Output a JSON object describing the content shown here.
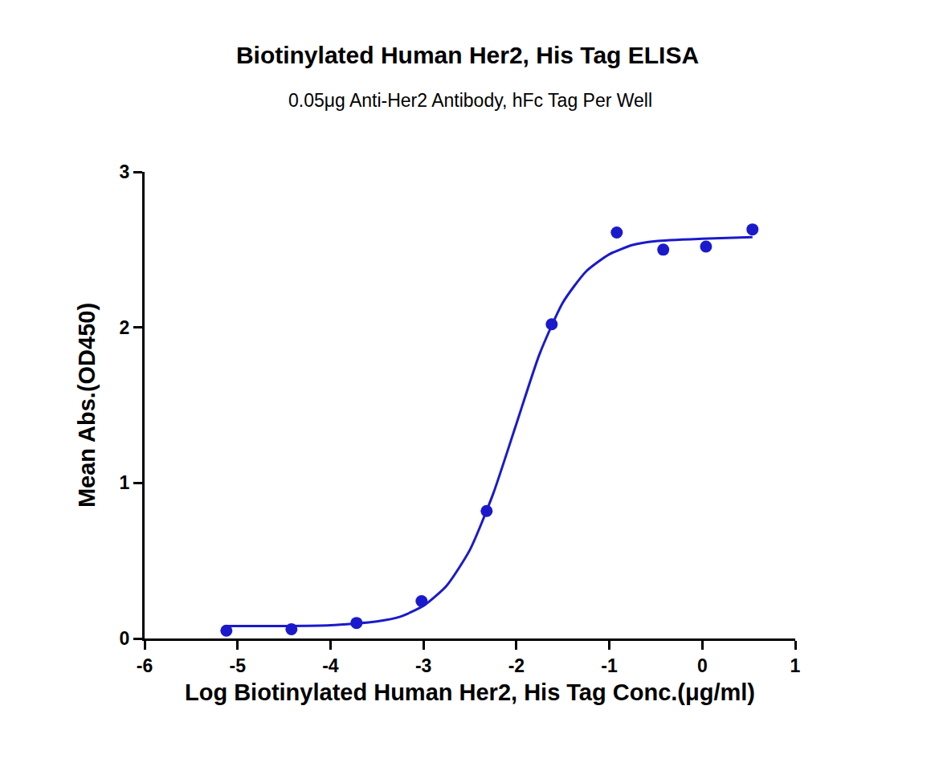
{
  "chart_data": {
    "type": "scatter",
    "title": "Biotinylated Human Her2, His Tag ELISA",
    "subtitle": "0.05μg Anti-Her2 Antibody, hFc Tag Per Well",
    "x_label": "Log Biotinylated Human Her2, His Tag Conc.(μg/ml)",
    "y_label": "Mean Abs.(OD450)",
    "xlim": [
      -6,
      1
    ],
    "xticks": [
      -6,
      -5,
      -4,
      -3,
      -2,
      -1,
      0,
      1
    ],
    "ylim": [
      0,
      3
    ],
    "yticks": [
      0,
      1,
      2,
      3
    ],
    "grid": false,
    "series": [
      {
        "type": "scatter",
        "marker": "circle",
        "color": "#1a1acc",
        "x": [
          -5.12,
          -4.42,
          -3.72,
          -3.02,
          -2.32,
          -1.62,
          -0.92,
          -0.42,
          0.04,
          0.54
        ],
        "values": [
          0.05,
          0.06,
          0.1,
          0.24,
          0.82,
          2.02,
          2.61,
          2.5,
          2.52,
          2.63
        ]
      },
      {
        "type": "line",
        "line_style": "solid",
        "color": "#1a1acc",
        "x": [
          -5.12,
          -4.5,
          -4.0,
          -3.5,
          -3.25,
          -3.0,
          -2.75,
          -2.5,
          -2.25,
          -2.0,
          -1.75,
          -1.5,
          -1.25,
          -1.0,
          -0.75,
          -0.5,
          0.0,
          0.54
        ],
        "values": [
          0.08,
          0.08,
          0.085,
          0.11,
          0.14,
          0.21,
          0.34,
          0.57,
          0.93,
          1.38,
          1.83,
          2.16,
          2.36,
          2.47,
          2.53,
          2.555,
          2.57,
          2.58
        ]
      }
    ]
  }
}
